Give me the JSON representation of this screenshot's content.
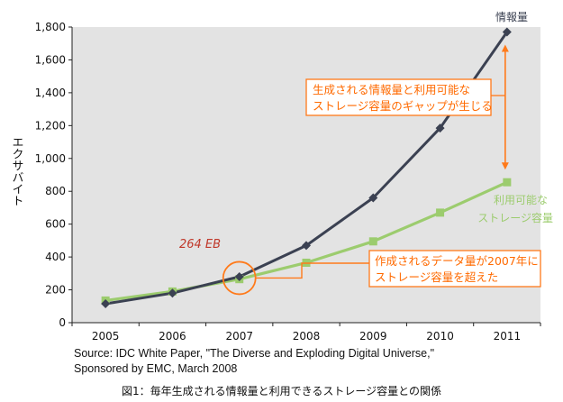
{
  "chart_data": {
    "type": "line",
    "x": [
      "2005",
      "2006",
      "2007",
      "2008",
      "2009",
      "2010",
      "2011"
    ],
    "series": [
      {
        "name": "情報量",
        "color": "#3b4152",
        "marker": "diamond",
        "values": [
          115,
          180,
          280,
          470,
          760,
          1185,
          1770
        ]
      },
      {
        "name": "利用可能なストレージ容量",
        "color": "#9ccc6e",
        "marker": "square",
        "values": [
          135,
          190,
          265,
          365,
          495,
          670,
          855
        ]
      }
    ],
    "series_labels": {
      "info": "情報量",
      "storage_line1": "利用可能な",
      "storage_line2": "ストレージ容量"
    },
    "ylabel": "エクサバイト",
    "ylim": [
      0,
      1800
    ],
    "yticks": [
      "0",
      "200",
      "400",
      "600",
      "800",
      "1,000",
      "1,200",
      "1,400",
      "1,600",
      "1,800"
    ],
    "annotations": {
      "eb_2007": "264 EB",
      "gap_line1": "生成される情報量と利用可能な",
      "gap_line2": "ストレージ容量のギャップが生じる",
      "cross_line1": "作成されるデータ量が2007年に",
      "cross_line2": "ストレージ容量を超えた"
    },
    "grid": false,
    "colors": {
      "accent": "#ff7a1a",
      "background": "#e3e3e3"
    }
  },
  "source": {
    "line1": "Source: IDC White Paper, \"The Diverse and Exploding Digital Universe,\"",
    "line2": "Sponsored by EMC, March 2008"
  },
  "caption": "図1：毎年生成される情報量と利用できるストレージ容量との関係"
}
